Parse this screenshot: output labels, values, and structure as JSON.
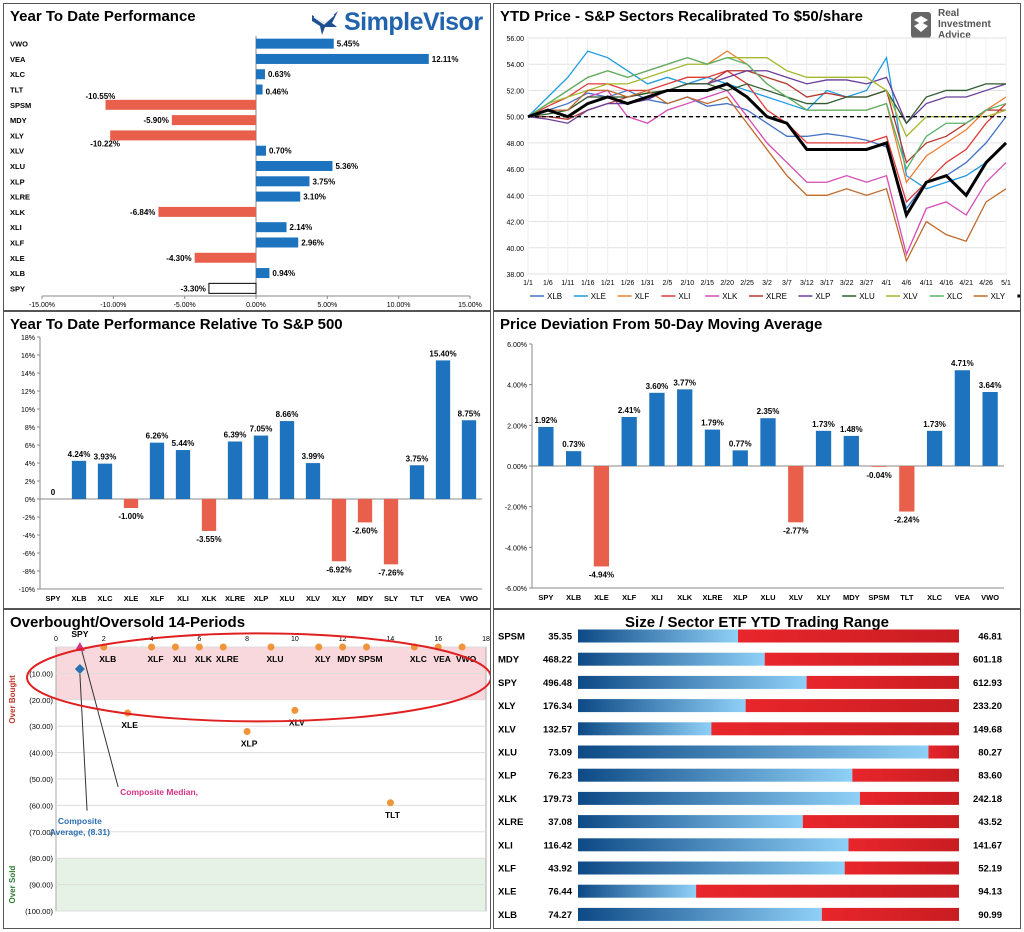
{
  "colors": {
    "pos": "#1e73be",
    "neg": "#e8604c",
    "ob_zone": "#f8d8dc",
    "os_zone": "#e6f2e6",
    "dot": "#f0943a"
  },
  "logos": {
    "simplevisor": "SimpleVisor",
    "ria": [
      "Real",
      "Investment",
      "Advice"
    ]
  },
  "ytd": {
    "title": "Year To Date Performance",
    "chart_data": {
      "type": "bar",
      "orientation": "horizontal",
      "categories": [
        "VWO",
        "VEA",
        "XLC",
        "TLT",
        "SPSM",
        "MDY",
        "XLY",
        "XLV",
        "XLU",
        "XLP",
        "XLRE",
        "XLK",
        "XLI",
        "XLF",
        "XLE",
        "XLB",
        "SPY"
      ],
      "values": [
        5.45,
        12.11,
        0.63,
        0.46,
        -10.55,
        -5.9,
        -10.22,
        0.7,
        5.36,
        3.75,
        3.1,
        -6.84,
        2.14,
        2.96,
        -4.3,
        0.94,
        -3.3
      ],
      "labels": [
        "5.45%",
        "12.11%",
        "0.63%",
        "0.46%",
        "-10.55%",
        "-5.90%",
        "-10.22%",
        "0.70%",
        "5.36%",
        "3.75%",
        "3.10%",
        "-6.84%",
        "2.14%",
        "2.96%",
        "-4.30%",
        "0.94%",
        "-3.30%"
      ],
      "xlim": [
        -15,
        15
      ],
      "xticks": [
        -15,
        -10,
        -5,
        0,
        5,
        10,
        15
      ],
      "xtick_labels": [
        "-15.00%",
        "-10.00%",
        "-5.00%",
        "0.00%",
        "5.00%",
        "10.00%",
        "15.00%"
      ],
      "highlight": "SPY"
    }
  },
  "ytdprice": {
    "title": "YTD Price - S&P Sectors Recalibrated To $50/share",
    "chart_data": {
      "type": "line",
      "x": [
        "1/1",
        "1/6",
        "1/11",
        "1/16",
        "1/21",
        "1/26",
        "1/31",
        "2/5",
        "2/10",
        "2/15",
        "2/20",
        "2/25",
        "3/2",
        "3/7",
        "3/12",
        "3/17",
        "3/22",
        "3/27",
        "4/1",
        "4/6",
        "4/11",
        "4/16",
        "4/21",
        "4/26",
        "5/1"
      ],
      "ylim": [
        38,
        56
      ],
      "yticks": [
        38,
        40,
        42,
        44,
        46,
        48,
        50,
        52,
        54,
        56
      ],
      "ytick_labels": [
        "38.00",
        "40.00",
        "42.00",
        "44.00",
        "46.00",
        "48.00",
        "50.00",
        "52.00",
        "54.00",
        "56.00"
      ],
      "reference": 50,
      "series": [
        {
          "name": "XLB",
          "color": "#4472c4",
          "values": [
            50,
            50.5,
            51,
            51.8,
            51.5,
            52,
            51.3,
            51,
            51.5,
            50.8,
            51,
            50.5,
            49.5,
            48.5,
            48.5,
            48.7,
            48.5,
            48.2,
            47.7,
            43,
            45,
            45.5,
            46.5,
            48,
            50
          ]
        },
        {
          "name": "XLE",
          "color": "#1e9be0",
          "values": [
            50,
            51.5,
            53,
            55,
            54.5,
            53.5,
            52.5,
            53,
            52.5,
            53,
            52.5,
            52,
            51.5,
            51,
            50.5,
            52,
            51.5,
            52,
            54.5,
            45.5,
            44.5,
            45,
            45.5,
            46.5,
            48
          ]
        },
        {
          "name": "XLF",
          "color": "#ed7d31",
          "values": [
            50,
            51,
            52,
            53,
            53.5,
            53,
            53.5,
            54,
            54.5,
            54,
            55,
            54,
            52.5,
            51.5,
            50.5,
            50.5,
            50.5,
            50.5,
            51,
            45,
            47,
            48,
            49,
            50.5,
            51.5
          ]
        },
        {
          "name": "XLI",
          "color": "#e03a3a",
          "values": [
            50,
            50.8,
            51.5,
            52.5,
            52.5,
            52,
            52,
            52.5,
            53,
            53,
            53.5,
            52.5,
            50.5,
            49.5,
            48,
            48,
            48,
            48,
            48.5,
            43.5,
            45,
            46.5,
            47.5,
            49.5,
            51
          ]
        },
        {
          "name": "XLK",
          "color": "#d64bb5",
          "values": [
            50,
            50.5,
            50.5,
            51.5,
            52,
            50,
            49.5,
            50.5,
            51,
            51.5,
            52,
            50,
            48,
            46.5,
            45,
            45,
            45.5,
            45,
            45.5,
            39.5,
            43,
            43.5,
            42.5,
            45,
            46.5
          ]
        },
        {
          "name": "XLRE",
          "color": "#b5372f",
          "values": [
            50,
            50,
            49.8,
            50.5,
            51,
            51.5,
            51.8,
            52,
            52.5,
            52.5,
            53.5,
            53.5,
            53,
            52.5,
            51.5,
            51.8,
            51.5,
            51.5,
            52,
            46.5,
            48,
            48.5,
            49.5,
            50.5,
            50.5
          ]
        },
        {
          "name": "XLP",
          "color": "#6a3d9a",
          "values": [
            50,
            49.8,
            49.5,
            50.5,
            51,
            51,
            51.3,
            52,
            52.5,
            52.5,
            53,
            53.5,
            53.5,
            53,
            52.5,
            52.8,
            52.8,
            52.5,
            53,
            49.5,
            51,
            51.5,
            51.5,
            52,
            52.5
          ]
        },
        {
          "name": "XLU",
          "color": "#2f5b2f",
          "values": [
            50,
            50.2,
            50.5,
            51.5,
            51.5,
            51.5,
            51.8,
            52,
            52.5,
            52.5,
            52,
            52.5,
            52,
            51.5,
            51,
            51,
            51.5,
            51.5,
            52,
            49.5,
            51.5,
            52,
            52,
            52.5,
            52.5
          ]
        },
        {
          "name": "XLV",
          "color": "#a5b82e",
          "values": [
            50,
            51,
            51.5,
            52,
            52.5,
            52.5,
            53,
            53.5,
            54,
            54,
            54.5,
            54.5,
            54.5,
            53.5,
            53,
            53,
            53,
            53,
            52,
            48.5,
            50,
            50,
            50,
            50,
            50.5
          ]
        },
        {
          "name": "XLC",
          "color": "#59b26a",
          "values": [
            50,
            51,
            52,
            53,
            53.5,
            53,
            53.5,
            54,
            54.5,
            54,
            54.5,
            54,
            52.5,
            51.5,
            50.5,
            50.5,
            50.5,
            50.5,
            51,
            46,
            48.5,
            49.5,
            49.5,
            50.5,
            51
          ]
        },
        {
          "name": "XLY",
          "color": "#c06a2a",
          "values": [
            50,
            50.5,
            50.5,
            52,
            52,
            51.5,
            52,
            51,
            51.5,
            51,
            51.5,
            49.5,
            47.5,
            45.5,
            44,
            44,
            44.5,
            44,
            44.5,
            39,
            42,
            41,
            40.5,
            43.5,
            44.5
          ]
        },
        {
          "name": "SPY",
          "color": "#000000",
          "width": 3,
          "values": [
            50,
            50.5,
            50,
            51,
            51.5,
            51,
            51.5,
            52,
            52,
            52,
            52.5,
            51.5,
            50,
            49.5,
            47.5,
            47.5,
            47.5,
            47.5,
            48,
            42.5,
            45,
            45.5,
            44,
            46.5,
            48
          ]
        }
      ]
    }
  },
  "rel": {
    "title": "Year To Date Performance Relative To S&P 500",
    "chart_data": {
      "type": "bar",
      "categories": [
        "SPY",
        "XLB",
        "XLC",
        "XLE",
        "XLF",
        "XLI",
        "XLK",
        "XLRE",
        "XLP",
        "XLU",
        "XLV",
        "XLY",
        "MDY",
        "SLY",
        "TLT",
        "VEA",
        "VWO"
      ],
      "values": [
        0,
        4.24,
        3.93,
        -1.0,
        6.26,
        5.44,
        -3.55,
        6.39,
        7.05,
        8.66,
        3.99,
        -6.92,
        -2.6,
        -7.26,
        3.75,
        15.4,
        8.75
      ],
      "labels": [
        "0",
        "4.24%",
        "3.93%",
        "-1.00%",
        "6.26%",
        "5.44%",
        "-3.55%",
        "6.39%",
        "7.05%",
        "8.66%",
        "3.99%",
        "-6.92%",
        "-2.60%",
        "-7.26%",
        "3.75%",
        "15.40%",
        "8.75%"
      ],
      "ylim": [
        -10,
        18
      ],
      "yticks": [
        -10,
        -8,
        -6,
        -4,
        -2,
        0,
        2,
        4,
        6,
        8,
        10,
        12,
        14,
        16,
        18
      ],
      "ytick_labels": [
        "-10%",
        "-8%",
        "-6%",
        "-4%",
        "-2%",
        "0%",
        "2%",
        "4%",
        "6%",
        "8%",
        "10%",
        "12%",
        "14%",
        "16%",
        "18%"
      ]
    }
  },
  "dev": {
    "title": "Price Deviation From 50-Day Moving Average",
    "chart_data": {
      "type": "bar",
      "categories": [
        "SPY",
        "XLB",
        "XLE",
        "XLF",
        "XLI",
        "XLK",
        "XLRE",
        "XLP",
        "XLU",
        "XLV",
        "XLY",
        "MDY",
        "SPSM",
        "TLT",
        "XLC",
        "VEA",
        "VWO"
      ],
      "values": [
        1.92,
        0.73,
        -4.94,
        2.41,
        3.6,
        3.77,
        1.79,
        0.77,
        2.35,
        -2.77,
        1.73,
        1.48,
        -0.04,
        -2.24,
        1.73,
        4.71,
        3.64
      ],
      "labels": [
        "1.92%",
        "0.73%",
        "-4.94%",
        "2.41%",
        "3.60%",
        "3.77%",
        "1.79%",
        "0.77%",
        "2.35%",
        "-2.77%",
        "1.73%",
        "1.48%",
        "-0.04%",
        "-2.24%",
        "1.73%",
        "4.71%",
        "3.64%"
      ],
      "ylim": [
        -6,
        6
      ],
      "yticks": [
        -6,
        -4,
        -2,
        0,
        2,
        4,
        6
      ],
      "ytick_labels": [
        "-6.00%",
        "-4.00%",
        "-2.00%",
        "0.00%",
        "2.00%",
        "4.00%",
        "6.00%"
      ]
    }
  },
  "obos": {
    "title": "Overbought/Oversold 14-Periods",
    "chart_data": {
      "type": "scatter",
      "xlim": [
        0,
        18
      ],
      "xticks": [
        0,
        2,
        4,
        6,
        8,
        10,
        12,
        14,
        16,
        18
      ],
      "xtick_labels": [
        "0",
        "2",
        "4",
        "6",
        "8",
        "10",
        "12",
        "14",
        "16",
        "18"
      ],
      "ylim": [
        -100,
        0
      ],
      "yticks": [
        0,
        -10,
        -20,
        -30,
        -40,
        -50,
        -60,
        -70,
        -80,
        -90,
        -100
      ],
      "ytick_labels": [
        "",
        "(10.00)",
        "(20.00)",
        "(30.00)",
        "(40.00)",
        "(50.00)",
        "(60.00)",
        "(70.00)",
        "(80.00)",
        "(90.00)",
        "(100.00)"
      ],
      "zones": {
        "overbought": [
          0,
          -20
        ],
        "oversold": [
          -80,
          -100
        ],
        "overbought_label": "Over Bought",
        "oversold_label": "Over Sold"
      },
      "points": [
        {
          "label": "SPY",
          "x": 1,
          "y": 0
        },
        {
          "label": "XLB",
          "x": 2,
          "y": 0
        },
        {
          "label": "XLF",
          "x": 4,
          "y": 0
        },
        {
          "label": "XLI",
          "x": 5,
          "y": 0
        },
        {
          "label": "XLK",
          "x": 6,
          "y": 0
        },
        {
          "label": "XLRE",
          "x": 7,
          "y": 0
        },
        {
          "label": "XLU",
          "x": 9,
          "y": 0
        },
        {
          "label": "XLY",
          "x": 11,
          "y": 0
        },
        {
          "label": "MDY",
          "x": 12,
          "y": 0
        },
        {
          "label": "SPSM",
          "x": 13,
          "y": 0
        },
        {
          "label": "XLC",
          "x": 15,
          "y": 0
        },
        {
          "label": "VEA",
          "x": 16,
          "y": 0
        },
        {
          "label": "VWO",
          "x": 17,
          "y": 0
        },
        {
          "label": "XLE",
          "x": 3,
          "y": -25
        },
        {
          "label": "XLP",
          "x": 8,
          "y": -32
        },
        {
          "label": "XLV",
          "x": 10,
          "y": -24
        },
        {
          "label": "TLT",
          "x": 14,
          "y": -59
        }
      ],
      "composite_median": {
        "label": "Composite Median,",
        "x": 1,
        "y": 0
      },
      "composite_average": {
        "label": "Composite Average, (8.31)",
        "label_lines": [
          "Composite",
          "Average, (8.31)"
        ],
        "x": 1,
        "y": -8.31
      }
    }
  },
  "range": {
    "title": "Size / Sector ETF YTD Trading Range",
    "chart_data": {
      "type": "range",
      "rows": [
        {
          "ticker": "SPSM",
          "low": "35.35",
          "high": "46.81",
          "fraction": 0.42
        },
        {
          "ticker": "MDY",
          "low": "468.22",
          "high": "601.18",
          "fraction": 0.49
        },
        {
          "ticker": "SPY",
          "low": "496.48",
          "high": "612.93",
          "fraction": 0.6
        },
        {
          "ticker": "XLY",
          "low": "176.34",
          "high": "233.20",
          "fraction": 0.44
        },
        {
          "ticker": "XLV",
          "low": "132.57",
          "high": "149.68",
          "fraction": 0.35
        },
        {
          "ticker": "XLU",
          "low": "73.09",
          "high": "80.27",
          "fraction": 0.92
        },
        {
          "ticker": "XLP",
          "low": "76.23",
          "high": "83.60",
          "fraction": 0.72
        },
        {
          "ticker": "XLK",
          "low": "179.73",
          "high": "242.18",
          "fraction": 0.74
        },
        {
          "ticker": "XLRE",
          "low": "37.08",
          "high": "43.52",
          "fraction": 0.59
        },
        {
          "ticker": "XLI",
          "low": "116.42",
          "high": "141.67",
          "fraction": 0.71
        },
        {
          "ticker": "XLF",
          "low": "43.92",
          "high": "52.19",
          "fraction": 0.7
        },
        {
          "ticker": "XLE",
          "low": "76.44",
          "high": "94.13",
          "fraction": 0.31
        },
        {
          "ticker": "XLB",
          "low": "74.27",
          "high": "90.99",
          "fraction": 0.64
        }
      ]
    }
  }
}
